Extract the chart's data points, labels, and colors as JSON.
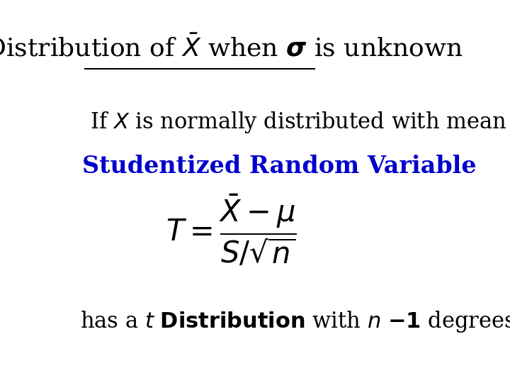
{
  "background_color": "#ffffff",
  "title_color": "#000000",
  "line2_color": "#000000",
  "line3_color": "#0000cc",
  "formula_color": "#000000",
  "line4_color": "#000000",
  "title_fontsize": 26,
  "body_fontsize": 22,
  "formula_fontsize": 30,
  "line3_fontsize": 24
}
